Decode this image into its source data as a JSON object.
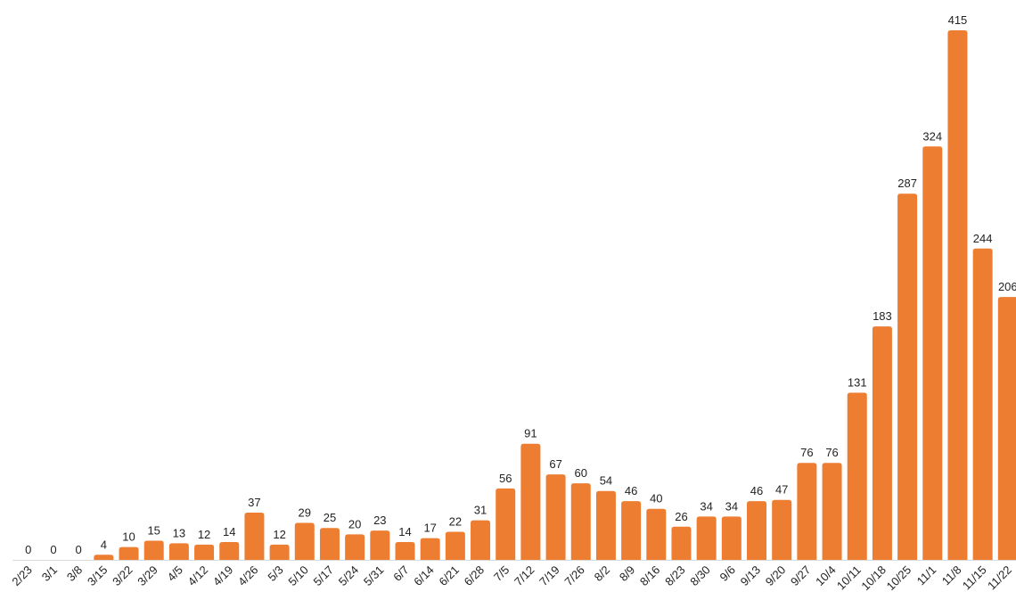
{
  "chart_data": {
    "type": "bar",
    "categories": [
      "2/23",
      "3/1",
      "3/8",
      "3/15",
      "3/22",
      "3/29",
      "4/5",
      "4/12",
      "4/19",
      "4/26",
      "5/3",
      "5/10",
      "5/17",
      "5/24",
      "5/31",
      "6/7",
      "6/14",
      "6/21",
      "6/28",
      "7/5",
      "7/12",
      "7/19",
      "7/26",
      "8/2",
      "8/9",
      "8/16",
      "8/23",
      "8/30",
      "9/6",
      "9/13",
      "9/20",
      "9/27",
      "10/4",
      "10/11",
      "10/18",
      "10/25",
      "11/1",
      "11/8",
      "11/15",
      "11/22"
    ],
    "values": [
      0,
      0,
      0,
      4,
      10,
      15,
      13,
      12,
      14,
      37,
      12,
      29,
      25,
      20,
      23,
      14,
      17,
      22,
      31,
      56,
      91,
      67,
      60,
      54,
      46,
      40,
      26,
      34,
      34,
      46,
      47,
      76,
      76,
      131,
      183,
      287,
      324,
      415,
      244,
      206
    ],
    "title": "",
    "xlabel": "",
    "ylabel": "",
    "ylim": [
      0,
      415
    ],
    "grid": false,
    "legend": "none",
    "bar_color": "#ED7D31",
    "axis_color": "#D9D9D9"
  }
}
